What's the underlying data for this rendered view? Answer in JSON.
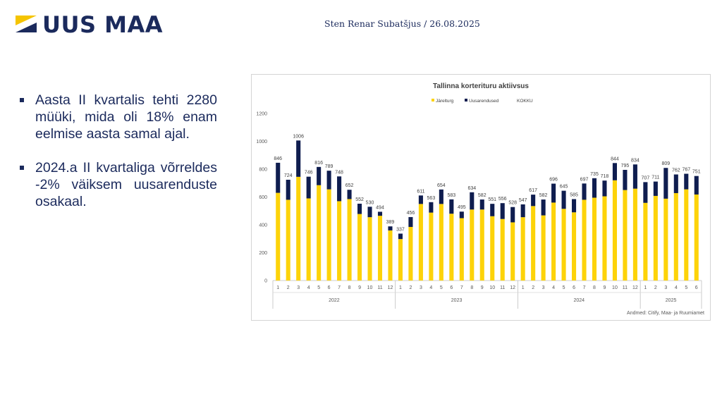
{
  "header": {
    "logo_text": "UUS MAA",
    "author_line": "Sten Renar Subatšjus / 26.08.2025"
  },
  "colors": {
    "navy": "#1b2a5c",
    "resale": "#fdd309",
    "new": "#0f1d4f",
    "logo_yellow": "#f5c400"
  },
  "bullets": [
    "Aasta II kvartalis tehti 2280 müüki, mida oli 18% enam eelmise aasta samal ajal.",
    "2024.a II kvartaliga võrreldes -2% väiksem uusarenduste osakaal."
  ],
  "chart_data": {
    "type": "bar",
    "stacked": true,
    "title": "Tallinna korterituru aktiivsus",
    "legend": [
      "Järelturg",
      "Uusarendused",
      "KOKKU"
    ],
    "legend_position": "top",
    "source": "Andmed: Citify, Maa- ja Ruumiamet",
    "ylim": [
      0,
      1200
    ],
    "yticks": [
      0,
      200,
      400,
      600,
      800,
      1000,
      1200
    ],
    "gridlines": false,
    "groups": [
      {
        "label": "2022",
        "months": [
          "1",
          "2",
          "3",
          "4",
          "5",
          "6",
          "7",
          "8",
          "9",
          "10",
          "11",
          "12"
        ]
      },
      {
        "label": "2023",
        "months": [
          "1",
          "2",
          "3",
          "4",
          "5",
          "6",
          "7",
          "8",
          "9",
          "10",
          "11",
          "12"
        ]
      },
      {
        "label": "2024",
        "months": [
          "1",
          "2",
          "3",
          "4",
          "5",
          "6",
          "7",
          "8",
          "9",
          "10",
          "11",
          "12"
        ]
      },
      {
        "label": "2025",
        "months": [
          "1",
          "2",
          "3",
          "4",
          "5",
          "6"
        ]
      }
    ],
    "series": [
      {
        "name": "Järelturg",
        "values": [
          630,
          580,
          745,
          590,
          685,
          655,
          570,
          585,
          478,
          455,
          465,
          360,
          298,
          385,
          550,
          488,
          550,
          480,
          448,
          510,
          510,
          462,
          442,
          418,
          455,
          535,
          468,
          560,
          515,
          490,
          580,
          595,
          605,
          720,
          650,
          660,
          558,
          608,
          588,
          628,
          655,
          618
        ]
      },
      {
        "name": "Uusarendused",
        "values": [
          216,
          144,
          261,
          156,
          131,
          134,
          178,
          67,
          74,
          75,
          29,
          29,
          39,
          71,
          61,
          75,
          104,
          103,
          47,
          124,
          72,
          89,
          114,
          110,
          92,
          82,
          114,
          136,
          130,
          95,
          117,
          140,
          113,
          124,
          145,
          174,
          149,
          103,
          221,
          134,
          112,
          133
        ]
      }
    ],
    "totals": [
      846,
      724,
      1006,
      746,
      816,
      789,
      748,
      652,
      552,
      530,
      494,
      389,
      337,
      456,
      611,
      563,
      654,
      583,
      495,
      634,
      582,
      551,
      556,
      528,
      547,
      617,
      582,
      696,
      645,
      585,
      697,
      735,
      718,
      844,
      795,
      834,
      707,
      711,
      809,
      762,
      767,
      751
    ]
  }
}
